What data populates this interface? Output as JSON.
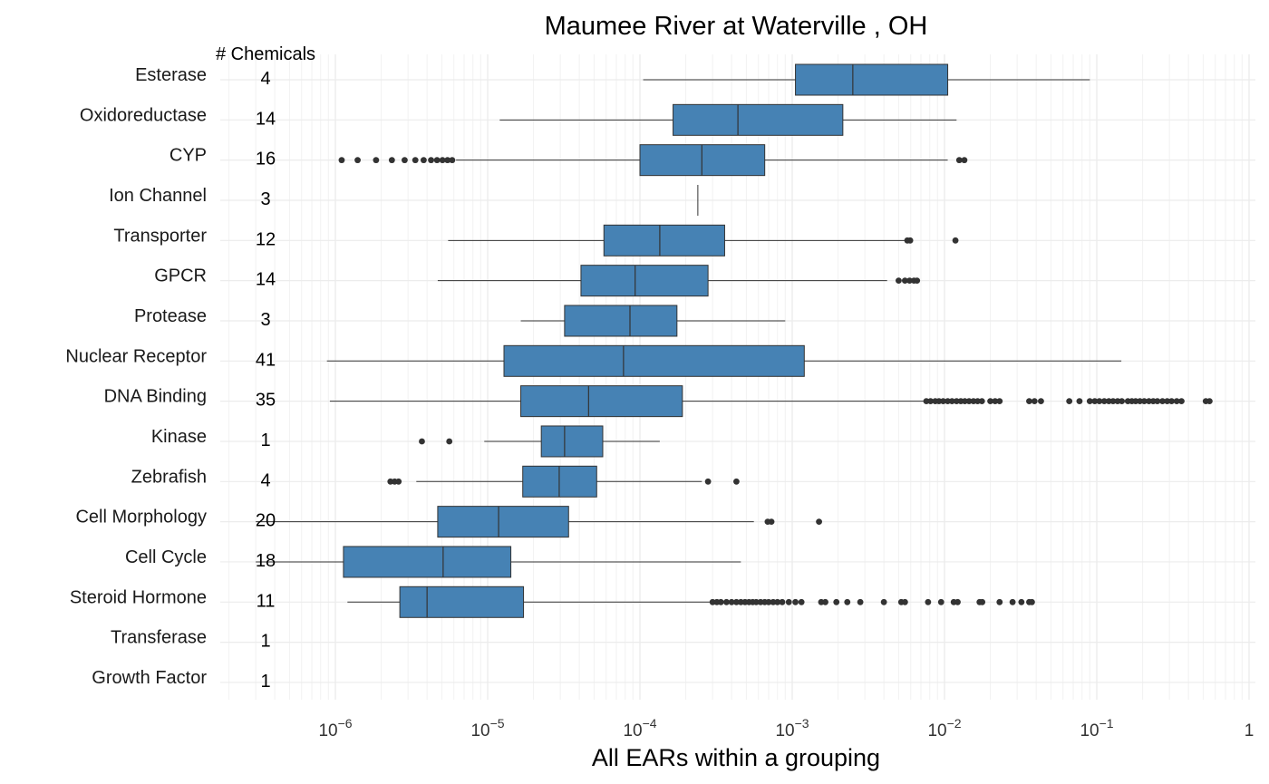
{
  "chart_data": {
    "type": "boxplot",
    "title": "Maumee River at Waterville , OH",
    "xlabel": "All EARs within a grouping",
    "ylabel": "",
    "count_header": "# Chemicals",
    "x_scale": "log10",
    "xlim": [
      3e-07,
      1.2
    ],
    "x_ticks": [
      {
        "value": 1e-06,
        "base": "10",
        "exp": "−6"
      },
      {
        "value": 1e-05,
        "base": "10",
        "exp": "−5"
      },
      {
        "value": 0.0001,
        "base": "10",
        "exp": "−4"
      },
      {
        "value": 0.001,
        "base": "10",
        "exp": "−3"
      },
      {
        "value": 0.01,
        "base": "10",
        "exp": "−2"
      },
      {
        "value": 0.1,
        "base": "10",
        "exp": "−1"
      },
      {
        "value": 1,
        "base": "1",
        "exp": ""
      }
    ],
    "grid": true,
    "box_color": "#4682b4",
    "whisker_color": "#333333",
    "outlier_color": "#333333",
    "categories": [
      {
        "name": "Esterase",
        "count": "4",
        "whisker_low": 0.000105,
        "q1": 0.00105,
        "median": 0.0025,
        "q3": 0.0105,
        "whisker_high": 0.09,
        "outliers": []
      },
      {
        "name": "Oxidoreductase",
        "count": "14",
        "whisker_low": 1.2e-05,
        "q1": 0.000165,
        "median": 0.00044,
        "q3": 0.00215,
        "whisker_high": 0.012,
        "outliers": []
      },
      {
        "name": "CYP",
        "count": "16",
        "whisker_low": 6.2e-06,
        "q1": 0.0001,
        "median": 0.000255,
        "q3": 0.00066,
        "whisker_high": 0.0105,
        "outliers": [
          1.1e-06,
          1.4e-06,
          1.85e-06,
          2.35e-06,
          2.85e-06,
          3.35e-06,
          3.8e-06,
          4.25e-06,
          4.65e-06,
          5.05e-06,
          5.45e-06,
          5.85e-06,
          0.0125,
          0.0135
        ]
      },
      {
        "name": "Ion Channel",
        "count": "3",
        "whisker_low": 0.00024,
        "q1": 0.00024,
        "median": 0.00024,
        "q3": 0.00024,
        "whisker_high": 0.00024,
        "outliers": []
      },
      {
        "name": "Transporter",
        "count": "12",
        "whisker_low": 5.5e-06,
        "q1": 5.8e-05,
        "median": 0.000135,
        "q3": 0.00036,
        "whisker_high": 0.0055,
        "outliers": [
          0.0057,
          0.00595,
          0.0118
        ]
      },
      {
        "name": "GPCR",
        "count": "14",
        "whisker_low": 4.7e-06,
        "q1": 4.1e-05,
        "median": 9.3e-05,
        "q3": 0.00028,
        "whisker_high": 0.0042,
        "outliers": [
          0.005,
          0.0055,
          0.0059,
          0.0063,
          0.0066
        ]
      },
      {
        "name": "Protease",
        "count": "3",
        "whisker_low": 1.65e-05,
        "q1": 3.2e-05,
        "median": 8.6e-05,
        "q3": 0.000175,
        "whisker_high": 0.0009,
        "outliers": []
      },
      {
        "name": "Nuclear Receptor",
        "count": "41",
        "whisker_low": 8.8e-07,
        "q1": 1.28e-05,
        "median": 7.8e-05,
        "q3": 0.0012,
        "whisker_high": 0.145,
        "outliers": []
      },
      {
        "name": "DNA Binding",
        "count": "35",
        "whisker_low": 9.2e-07,
        "q1": 1.65e-05,
        "median": 4.6e-05,
        "q3": 0.00019,
        "whisker_high": 0.0074,
        "outliers": [
          0.0076,
          0.0081,
          0.0087,
          0.0092,
          0.0098,
          0.0105,
          0.0112,
          0.012,
          0.0128,
          0.0136,
          0.0145,
          0.0155,
          0.0165,
          0.0176,
          0.02,
          0.0215,
          0.023,
          0.036,
          0.039,
          0.043,
          0.066,
          0.077,
          0.09,
          0.097,
          0.104,
          0.112,
          0.12,
          0.128,
          0.137,
          0.146,
          0.16,
          0.17,
          0.18,
          0.192,
          0.205,
          0.22,
          0.235,
          0.25,
          0.27,
          0.29,
          0.31,
          0.335,
          0.36,
          0.52,
          0.55
        ]
      },
      {
        "name": "Kinase",
        "count": "1",
        "whisker_low": 9.5e-06,
        "q1": 2.25e-05,
        "median": 3.2e-05,
        "q3": 5.7e-05,
        "whisker_high": 0.000135,
        "outliers": [
          3.7e-06,
          5.6e-06
        ]
      },
      {
        "name": "Zebrafish",
        "count": "4",
        "whisker_low": 3.4e-06,
        "q1": 1.7e-05,
        "median": 2.95e-05,
        "q3": 5.2e-05,
        "whisker_high": 0.000255,
        "outliers": [
          2.3e-06,
          2.45e-06,
          2.6e-06,
          0.00028,
          0.00043
        ]
      },
      {
        "name": "Cell Morphology",
        "count": "20",
        "whisker_low": 3e-07,
        "q1": 4.7e-06,
        "median": 1.18e-05,
        "q3": 3.4e-05,
        "whisker_high": 0.00056,
        "outliers": [
          0.00069,
          0.00073,
          0.0015
        ]
      },
      {
        "name": "Cell Cycle",
        "count": "18",
        "whisker_low": 3e-07,
        "q1": 1.13e-06,
        "median": 5.1e-06,
        "q3": 1.42e-05,
        "whisker_high": 0.00046,
        "outliers": []
      },
      {
        "name": "Steroid Hormone",
        "count": "11",
        "whisker_low": 1.2e-06,
        "q1": 2.65e-06,
        "median": 4e-06,
        "q3": 1.72e-05,
        "whisker_high": 0.00029,
        "outliers": [
          0.0003,
          0.00032,
          0.00034,
          0.00037,
          0.0004,
          0.00043,
          0.00046,
          0.00049,
          0.00052,
          0.00055,
          0.00058,
          0.00062,
          0.00066,
          0.0007,
          0.00075,
          0.0008,
          0.00086,
          0.00095,
          0.00105,
          0.00115,
          0.00155,
          0.00165,
          0.00195,
          0.0023,
          0.0028,
          0.004,
          0.0052,
          0.0055,
          0.0078,
          0.0095,
          0.0115,
          0.0122,
          0.017,
          0.0177,
          0.023,
          0.028,
          0.032,
          0.036,
          0.0375
        ]
      },
      {
        "name": "Transferase",
        "count": "1",
        "whisker_low": null,
        "q1": null,
        "median": null,
        "q3": null,
        "whisker_high": null,
        "outliers": []
      },
      {
        "name": "Growth Factor",
        "count": "1",
        "whisker_low": null,
        "q1": null,
        "median": null,
        "q3": null,
        "whisker_high": null,
        "outliers": []
      }
    ]
  }
}
